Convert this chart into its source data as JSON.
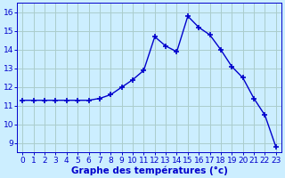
{
  "x": [
    0,
    1,
    2,
    3,
    4,
    5,
    6,
    7,
    8,
    9,
    10,
    11,
    12,
    13,
    14,
    15,
    16,
    17,
    18,
    19,
    20,
    21,
    22,
    23
  ],
  "y": [
    11.3,
    11.3,
    11.3,
    11.3,
    11.3,
    11.3,
    11.3,
    11.4,
    11.6,
    12.0,
    12.4,
    12.9,
    14.7,
    14.2,
    13.9,
    15.8,
    15.2,
    14.8,
    14.0,
    13.1,
    12.5,
    11.4,
    10.5,
    8.8
  ],
  "line_color": "#0000cc",
  "marker": "+",
  "marker_size": 5,
  "marker_lw": 1.2,
  "bg_color": "#cceeff",
  "grid_color": "#aacccc",
  "xlabel": "Graphe des températures (°c)",
  "xlabel_fontsize": 7.5,
  "xtick_labels": [
    "0",
    "1",
    "2",
    "3",
    "4",
    "5",
    "6",
    "7",
    "8",
    "9",
    "10",
    "11",
    "12",
    "13",
    "14",
    "15",
    "16",
    "17",
    "18",
    "19",
    "20",
    "21",
    "22",
    "23"
  ],
  "ylim": [
    8.5,
    16.5
  ],
  "yticks": [
    9,
    10,
    11,
    12,
    13,
    14,
    15,
    16
  ],
  "tick_color": "#0000cc",
  "tick_fontsize": 6.5,
  "linewidth": 1.0
}
